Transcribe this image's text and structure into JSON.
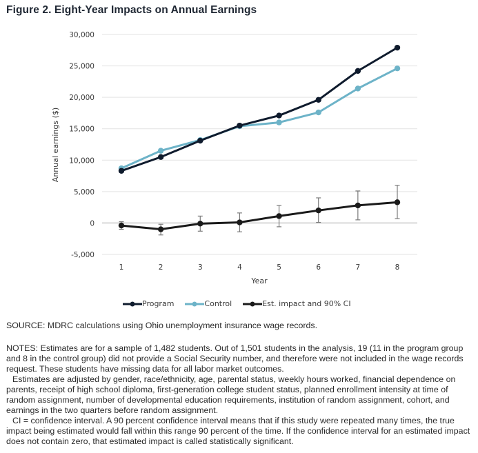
{
  "figure": {
    "title": "Figure 2. Eight-Year Impacts on Annual Earnings"
  },
  "chart_data": {
    "type": "line",
    "title": "Figure 2. Eight-Year Impacts on Annual Earnings",
    "xlabel": "Year",
    "ylabel": "Annual earnings ($)",
    "x": [
      1,
      2,
      3,
      4,
      5,
      6,
      7,
      8
    ],
    "x_tick_labels": [
      "1",
      "2",
      "3",
      "4",
      "5",
      "6",
      "7",
      "8"
    ],
    "ylim": [
      -5000,
      30000
    ],
    "y_ticks": [
      -5000,
      0,
      5000,
      10000,
      15000,
      20000,
      25000,
      30000
    ],
    "y_tick_labels": [
      "-5,000",
      "0",
      "5,000",
      "10,000",
      "15,000",
      "20,000",
      "25,000",
      "30,000"
    ],
    "grid": "horizontal",
    "legend_position": "bottom",
    "series": [
      {
        "name": "Program",
        "color": "#0f1b2d",
        "values": [
          8300,
          10500,
          13100,
          15500,
          17100,
          19600,
          24200,
          27900
        ]
      },
      {
        "name": "Control",
        "color": "#6db3c8",
        "values": [
          8700,
          11500,
          13200,
          15400,
          16000,
          17600,
          21400,
          24600
        ]
      },
      {
        "name": "Est. impact and 90% CI",
        "color": "#1a1a1a",
        "values": [
          -400,
          -1000,
          -100,
          100,
          1100,
          2000,
          2800,
          3300
        ],
        "ci_lower": [
          -1000,
          -1900,
          -1300,
          -1400,
          -600,
          100,
          500,
          700
        ],
        "ci_upper": [
          200,
          -200,
          1100,
          1600,
          2800,
          4000,
          5100,
          6000
        ]
      }
    ]
  },
  "legend": {
    "items": [
      {
        "label": "Program",
        "color": "#0f1b2d"
      },
      {
        "label": "Control",
        "color": "#6db3c8"
      },
      {
        "label": "Est. impact and 90% CI",
        "color": "#1a1a1a"
      }
    ]
  },
  "source": "SOURCE: MDRC calculations using Ohio unemployment insurance wage records.",
  "notes": [
    "NOTES: Estimates are for a sample of 1,482 students. Out of 1,501 students in the analysis, 19 (11 in the program group and 8 in the control group) did not provide a Social Security number, and therefore were not included in the wage records request. These students have missing data for all labor market outcomes.",
    "Estimates are adjusted by gender, race/ethnicity, age, parental status, weekly hours worked, financial dependence on parents, receipt of high school diploma, first-generation college student status, planned enrollment intensity at time of random assignment, number of developmental education requirements, institution of random assignment, cohort, and earnings in the two quarters before random assignment.",
    "CI = confidence interval. A 90 percent confidence interval means that if this study were repeated many times, the true impact being estimated would fall within this range 90 percent of the time. If the confidence interval for an estimated impact does not contain zero, that estimated impact is called statistically significant."
  ]
}
